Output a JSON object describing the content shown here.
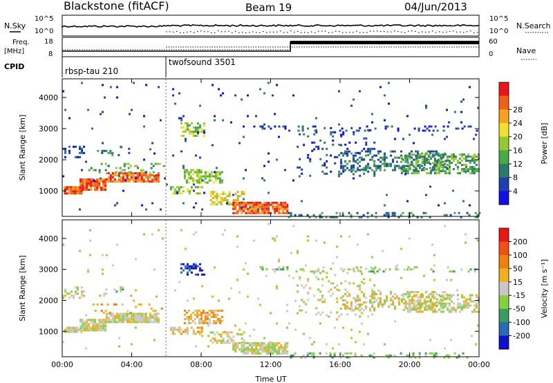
{
  "header": {
    "title": "Blackstone (fitACF)",
    "beam": "Beam 19",
    "date": "04/Jun/2013"
  },
  "panels": {
    "nsky_label": "N.Sky",
    "nsearch_label": "N.Search",
    "freq_label_1": "Freq.",
    "freq_label_2": "[MHz]",
    "nave_label": "Nave",
    "cpid_label": "CPID",
    "count_ticks": [
      "10^5",
      "10^0"
    ],
    "freq_ticks": [
      "18",
      "8"
    ],
    "nave_ticks": [
      "60",
      "0"
    ],
    "cpid_modes": [
      "rbsp-tau 210",
      "twofsound 3501"
    ]
  },
  "colorbars": {
    "power": {
      "label": "Power [dB]",
      "ticks": [
        "4",
        "8",
        "12",
        "16",
        "20",
        "24",
        "28"
      ],
      "colors": [
        "#1010e0",
        "#2040b0",
        "#2c7a6a",
        "#4aa84a",
        "#96c830",
        "#f0e030",
        "#f8a020",
        "#f06018",
        "#e81818"
      ]
    },
    "velocity": {
      "label": "Velocity [m s⁻¹]",
      "ticks": [
        "200",
        "100",
        "50",
        "15",
        "-15",
        "-50",
        "-100",
        "-200"
      ],
      "colors": [
        "#1010c8",
        "#2a6ab0",
        "#3a9a60",
        "#88d040",
        "#c8c8c8",
        "#f0b020",
        "#f08010",
        "#f05018",
        "#e81818"
      ]
    }
  },
  "chart_data": [
    {
      "type": "heatmap",
      "name": "power",
      "ylabel": "Slant Range [km]",
      "yticks": [
        1000,
        2000,
        3000,
        4000
      ],
      "ylim": [
        180,
        4600
      ],
      "xlim": [
        0,
        24
      ],
      "xticks": [
        0,
        4,
        8,
        12,
        16,
        20,
        24
      ],
      "xticklabels": [
        "00:00",
        "04:00",
        "08:00",
        "12:00",
        "16:00",
        "20:00",
        "00:00"
      ]
    },
    {
      "type": "heatmap",
      "name": "velocity",
      "ylabel": "Slant Range [km]",
      "xlabel": "Time UT",
      "yticks": [
        1000,
        2000,
        3000,
        4000
      ],
      "ylim": [
        180,
        4600
      ],
      "xlim": [
        0,
        24
      ],
      "xticks": [
        0,
        4,
        8,
        12,
        16,
        20,
        24
      ],
      "xticklabels": [
        "00:00",
        "04:00",
        "08:00",
        "12:00",
        "16:00",
        "20:00",
        "00:00"
      ]
    }
  ]
}
